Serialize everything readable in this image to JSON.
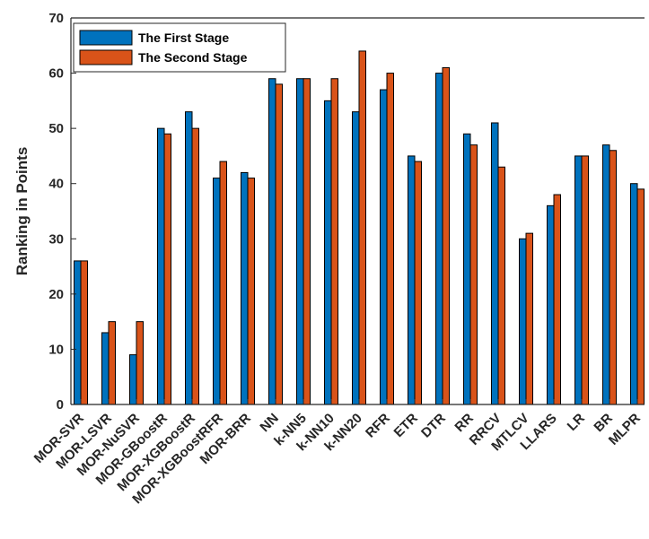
{
  "chart_data": {
    "type": "bar",
    "categories": [
      "MOR-SVR",
      "MOR-LSVR",
      "MOR-NuSVR",
      "MOR-GBoostR",
      "MOR-XGBoostR",
      "MOR-XGBoostRFR",
      "MOR-BRR",
      "NN",
      "k-NN5",
      "k-NN10",
      "k-NN20",
      "RFR",
      "ETR",
      "DTR",
      "RR",
      "RRCV",
      "MTLCV",
      "LLARS",
      "LR",
      "BR",
      "MLPR"
    ],
    "series": [
      {
        "name": "The First Stage",
        "color": "#0072BD",
        "values": [
          26,
          13,
          9,
          50,
          53,
          41,
          42,
          59,
          59,
          55,
          53,
          57,
          45,
          60,
          49,
          51,
          30,
          36,
          45,
          47,
          40
        ]
      },
      {
        "name": "The Second Stage",
        "color": "#D95319",
        "values": [
          26,
          15,
          15,
          49,
          50,
          44,
          41,
          58,
          59,
          59,
          64,
          60,
          44,
          61,
          47,
          43,
          31,
          38,
          45,
          46,
          39
        ]
      }
    ],
    "title": "",
    "xlabel": "",
    "ylabel": "Ranking in Points",
    "ylim": [
      0,
      70
    ],
    "yticks": [
      "0",
      "10",
      "20",
      "30",
      "40",
      "50",
      "60",
      "70"
    ],
    "grid": false,
    "legend": "top-left"
  }
}
